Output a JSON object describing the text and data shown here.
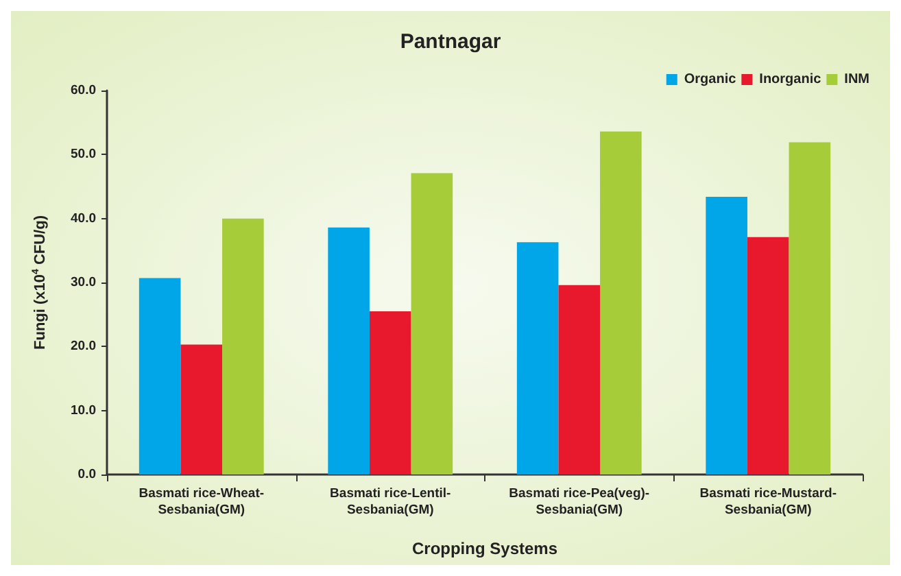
{
  "chart_data": {
    "type": "bar",
    "title": "Pantnagar",
    "xlabel": "Cropping Systems",
    "ylabel": "Fungi (x10$^{4}$ CFU/g)",
    "categories": [
      "Basmati rice-Wheat-\nSesbania(GM)",
      "Basmati rice-Lentil-\nSesbania(GM)",
      "Basmati rice-Pea(veg)-\nSesbania(GM)",
      "Basmati rice-Mustard-\nSesbania(GM)"
    ],
    "series": [
      {
        "name": "Organic",
        "color": "#00a6e8",
        "values": [
          30.7,
          38.6,
          36.3,
          43.4
        ]
      },
      {
        "name": "Inorganic",
        "color": "#e8192c",
        "values": [
          20.3,
          25.5,
          29.6,
          37.1
        ]
      },
      {
        "name": "INM",
        "color": "#a6cc3a",
        "values": [
          40.0,
          47.1,
          53.6,
          51.9
        ]
      }
    ],
    "ylim": [
      0,
      60
    ],
    "yticks": [
      {
        "value": 0,
        "label": "0.0"
      },
      {
        "value": 10,
        "label": "10.0"
      },
      {
        "value": 20,
        "label": "20.0"
      },
      {
        "value": 30,
        "label": "30.0"
      },
      {
        "value": 40,
        "label": "40.0"
      },
      {
        "value": 50,
        "label": "50.0"
      },
      {
        "value": 60,
        "label": "60.0"
      }
    ],
    "grid": false,
    "legend": "top right"
  }
}
